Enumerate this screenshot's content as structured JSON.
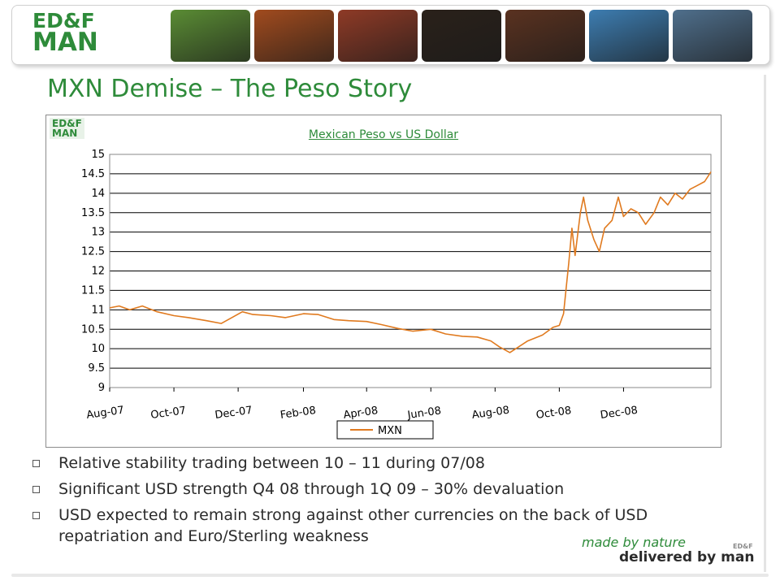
{
  "header": {
    "logo_line1": "ED&F",
    "logo_line2": "MAN",
    "photos": [
      {
        "name": "sugar-cane-photo",
        "color": "#5a8c34"
      },
      {
        "name": "cocoa-pod-photo",
        "color": "#a14b1e"
      },
      {
        "name": "coffee-cherries-photo",
        "color": "#8e3a26"
      },
      {
        "name": "molasses-photo",
        "color": "#2a211a"
      },
      {
        "name": "coffee-beans-photo",
        "color": "#5a3220"
      },
      {
        "name": "ship-photo",
        "color": "#3d7db1"
      },
      {
        "name": "port-photo",
        "color": "#4f6f8c"
      }
    ]
  },
  "slide": {
    "title": "MXN Demise – The Peso Story"
  },
  "chart_box": {
    "logo_line1": "ED&F",
    "logo_line2": "MAN"
  },
  "chart_data": {
    "type": "line",
    "title": "Mexican Peso vs US Dollar",
    "xlabel": "",
    "ylabel": "",
    "ylim": [
      9,
      15
    ],
    "y_ticks": [
      "15",
      "14.5",
      "14",
      "13.5",
      "13",
      "12.5",
      "12",
      "11.5",
      "11",
      "10.5",
      "10",
      "9.5",
      "9"
    ],
    "x_ticks": [
      "Aug-07",
      "Oct-07",
      "Dec-07",
      "Feb-08",
      "Apr-08",
      "Jun-08",
      "Aug-08",
      "Oct-08",
      "Dec-08"
    ],
    "grid": true,
    "legend": "bottom",
    "series": [
      {
        "name": "MXN",
        "color": "#e07a1f",
        "x": [
          "2007-08-01",
          "2007-08-10",
          "2007-08-20",
          "2007-09-01",
          "2007-09-15",
          "2007-10-01",
          "2007-10-15",
          "2007-11-01",
          "2007-11-15",
          "2007-11-25",
          "2007-12-05",
          "2007-12-15",
          "2008-01-01",
          "2008-01-15",
          "2008-02-01",
          "2008-02-15",
          "2008-03-01",
          "2008-03-15",
          "2008-04-01",
          "2008-04-15",
          "2008-05-01",
          "2008-05-15",
          "2008-06-01",
          "2008-06-15",
          "2008-07-01",
          "2008-07-15",
          "2008-07-28",
          "2008-08-05",
          "2008-08-15",
          "2008-09-01",
          "2008-09-15",
          "2008-09-25",
          "2008-10-01",
          "2008-10-05",
          "2008-10-08",
          "2008-10-10",
          "2008-10-13",
          "2008-10-16",
          "2008-10-21",
          "2008-10-24",
          "2008-10-28",
          "2008-11-03",
          "2008-11-08",
          "2008-11-13",
          "2008-11-20",
          "2008-11-26",
          "2008-12-01",
          "2008-12-08",
          "2008-12-15",
          "2008-12-22",
          "2008-12-30",
          "2009-01-05",
          "2009-01-12",
          "2009-01-19",
          "2009-01-26",
          "2009-02-02",
          "2009-02-09",
          "2009-02-16",
          "2009-02-22"
        ],
        "values": [
          11.05,
          11.1,
          11.0,
          11.1,
          10.95,
          10.85,
          10.8,
          10.72,
          10.65,
          10.8,
          10.95,
          10.88,
          10.85,
          10.8,
          10.9,
          10.88,
          10.75,
          10.72,
          10.7,
          10.62,
          10.52,
          10.45,
          10.5,
          10.38,
          10.32,
          10.3,
          10.2,
          10.05,
          9.9,
          10.2,
          10.35,
          10.55,
          10.6,
          10.9,
          11.7,
          12.2,
          13.1,
          12.4,
          13.5,
          13.9,
          13.3,
          12.8,
          12.5,
          13.1,
          13.3,
          13.9,
          13.4,
          13.6,
          13.5,
          13.2,
          13.5,
          13.9,
          13.7,
          14.0,
          13.85,
          14.1,
          14.2,
          14.3,
          14.55
        ]
      }
    ]
  },
  "bullets": [
    "Relative stability trading between 10 – 11 during 07/08",
    "Significant USD strength Q4 08 through 1Q 09 – 30% devaluation",
    "USD expected to remain strong against other currencies on the back of USD repatriation and Euro/Sterling weakness"
  ],
  "tagline": {
    "line1": "made by nature",
    "line2": "delivered by man",
    "mini": "ED&F"
  }
}
